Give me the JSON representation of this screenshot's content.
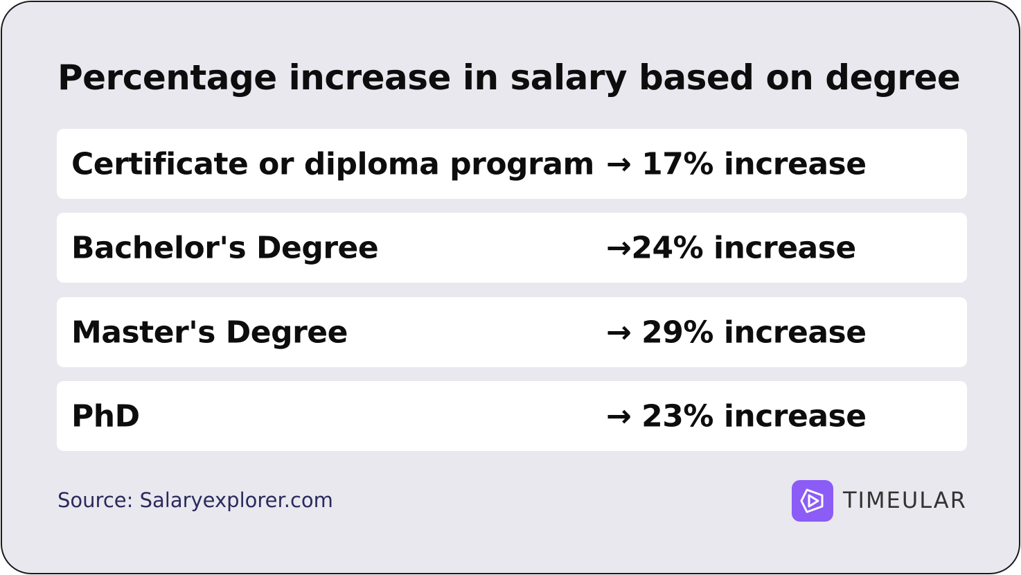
{
  "title": "Percentage increase in salary based on degree",
  "rows": [
    {
      "label": "Certificate or diploma program",
      "value": "→ 17% increase"
    },
    {
      "label": "Bachelor's Degree",
      "value": "→24% increase"
    },
    {
      "label": "Master's Degree",
      "value": "→ 29% increase"
    },
    {
      "label": "PhD",
      "value": "→ 23% increase"
    }
  ],
  "source": "Source: Salaryexplorer.com",
  "logo": "TIMEULAR"
}
